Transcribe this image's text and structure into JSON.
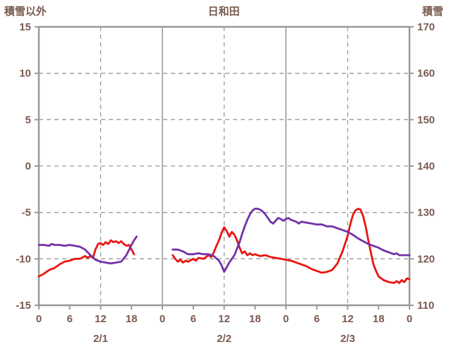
{
  "header": {
    "left_axis_title": "積雪以外",
    "title": "日和田",
    "right_axis_title": "積雪"
  },
  "colors": {
    "background": "#ffffff",
    "border": "#999999",
    "grid": "#9b9b9b",
    "text": "#7a5a50",
    "red_line": "#ea1510",
    "purple_line": "#7133a6"
  },
  "chart_data": {
    "type": "line",
    "title": "日和田",
    "x_unit": "hour",
    "x_range": [
      0,
      72
    ],
    "grid": true,
    "legend": "none",
    "left_axis": {
      "title": "積雪以外",
      "range": [
        -15,
        15
      ],
      "ticks": [
        15,
        10,
        5,
        0,
        -5,
        -10,
        -15
      ]
    },
    "right_axis": {
      "title": "積雪",
      "range": [
        110,
        170
      ],
      "ticks": [
        170,
        160,
        150,
        140,
        130,
        120,
        110
      ]
    },
    "x_ticks": [
      {
        "hour": 0,
        "label": "0"
      },
      {
        "hour": 6,
        "label": "6"
      },
      {
        "hour": 12,
        "label": "12"
      },
      {
        "hour": 18,
        "label": "18"
      },
      {
        "hour": 24,
        "label": "0"
      },
      {
        "hour": 30,
        "label": "6"
      },
      {
        "hour": 36,
        "label": "12"
      },
      {
        "hour": 42,
        "label": "18"
      },
      {
        "hour": 48,
        "label": "0"
      },
      {
        "hour": 54,
        "label": "6"
      },
      {
        "hour": 60,
        "label": "12"
      },
      {
        "hour": 66,
        "label": "18"
      },
      {
        "hour": 72,
        "label": "0"
      }
    ],
    "day_labels": [
      {
        "hour": 12,
        "label": "2/1"
      },
      {
        "hour": 36,
        "label": "2/2"
      },
      {
        "hour": 60,
        "label": "2/3"
      }
    ],
    "v_gridlines_dashed_hours": [
      12,
      36,
      60
    ],
    "v_gridlines_solid_hours": [
      24,
      48
    ],
    "h_gridlines_left_values": [
      10,
      5,
      0,
      -5,
      -10
    ],
    "series": [
      {
        "name": "積雪以外",
        "axis": "left",
        "color": "#ea1510",
        "segments": [
          [
            [
              0,
              -11.9
            ],
            [
              1,
              -11.6
            ],
            [
              2,
              -11.2
            ],
            [
              3,
              -11.0
            ],
            [
              4,
              -10.6
            ],
            [
              5,
              -10.3
            ],
            [
              6,
              -10.2
            ],
            [
              7,
              -10.0
            ],
            [
              8,
              -10.0
            ],
            [
              9,
              -9.7
            ],
            [
              9.5,
              -9.9
            ],
            [
              10,
              -9.7
            ],
            [
              10.5,
              -9.9
            ],
            [
              11,
              -9.0
            ],
            [
              11.5,
              -8.4
            ],
            [
              12,
              -8.3
            ],
            [
              12.5,
              -8.5
            ],
            [
              13,
              -8.2
            ],
            [
              13.5,
              -8.4
            ],
            [
              14,
              -8.0
            ],
            [
              14.5,
              -8.2
            ],
            [
              15,
              -8.1
            ],
            [
              15.5,
              -8.3
            ],
            [
              16,
              -8.1
            ],
            [
              16.5,
              -8.4
            ],
            [
              17,
              -8.6
            ],
            [
              17.5,
              -8.5
            ],
            [
              18,
              -9.0
            ],
            [
              18.5,
              -9.5
            ]
          ],
          [
            [
              26,
              -9.6
            ],
            [
              26.5,
              -10.0
            ],
            [
              27,
              -10.3
            ],
            [
              27.5,
              -10.1
            ],
            [
              28,
              -10.4
            ],
            [
              28.5,
              -10.2
            ],
            [
              29,
              -10.3
            ],
            [
              30,
              -10.0
            ],
            [
              30.5,
              -10.2
            ],
            [
              31,
              -9.9
            ],
            [
              32,
              -10.0
            ],
            [
              33,
              -9.6
            ],
            [
              33.5,
              -9.8
            ],
            [
              34,
              -9.3
            ],
            [
              34.5,
              -8.6
            ],
            [
              35,
              -8.0
            ],
            [
              35.5,
              -7.2
            ],
            [
              36,
              -6.6
            ],
            [
              36.5,
              -7.0
            ],
            [
              37,
              -7.6
            ],
            [
              37.5,
              -7.1
            ],
            [
              38,
              -7.4
            ],
            [
              38.5,
              -8.0
            ],
            [
              39,
              -8.8
            ],
            [
              39.5,
              -9.4
            ],
            [
              40,
              -9.2
            ],
            [
              40.5,
              -9.6
            ],
            [
              41,
              -9.4
            ],
            [
              41.5,
              -9.6
            ],
            [
              42,
              -9.5
            ],
            [
              43,
              -9.7
            ],
            [
              44,
              -9.6
            ],
            [
              45,
              -9.8
            ],
            [
              46,
              -9.9
            ],
            [
              47,
              -10.0
            ],
            [
              48,
              -10.1
            ],
            [
              49,
              -10.2
            ],
            [
              50,
              -10.4
            ],
            [
              51,
              -10.6
            ],
            [
              52,
              -10.8
            ],
            [
              53,
              -11.1
            ],
            [
              54,
              -11.3
            ],
            [
              55,
              -11.5
            ],
            [
              56,
              -11.4
            ],
            [
              57,
              -11.2
            ],
            [
              58,
              -10.5
            ],
            [
              59,
              -9.2
            ],
            [
              60,
              -7.5
            ],
            [
              60.5,
              -6.3
            ],
            [
              61,
              -5.3
            ],
            [
              61.5,
              -4.8
            ],
            [
              62,
              -4.6
            ],
            [
              62.5,
              -4.7
            ],
            [
              63,
              -5.4
            ],
            [
              63.5,
              -6.5
            ],
            [
              64,
              -8.0
            ],
            [
              64.5,
              -9.3
            ],
            [
              65,
              -10.6
            ],
            [
              65.5,
              -11.3
            ],
            [
              66,
              -11.9
            ],
            [
              66.5,
              -12.1
            ],
            [
              67,
              -12.3
            ],
            [
              68,
              -12.5
            ],
            [
              69,
              -12.6
            ],
            [
              69.5,
              -12.4
            ],
            [
              70,
              -12.6
            ],
            [
              70.5,
              -12.3
            ],
            [
              71,
              -12.5
            ],
            [
              71.5,
              -12.1
            ],
            [
              72,
              -12.2
            ]
          ]
        ]
      },
      {
        "name": "積雪",
        "axis": "right",
        "color": "#7133a6",
        "segments": [
          [
            [
              0,
              123
            ],
            [
              1,
              123
            ],
            [
              2,
              122.8
            ],
            [
              2.5,
              123.2
            ],
            [
              3,
              123
            ],
            [
              4,
              123
            ],
            [
              5,
              122.8
            ],
            [
              6,
              123
            ],
            [
              7,
              122.8
            ],
            [
              8,
              122.6
            ],
            [
              9,
              122
            ],
            [
              10,
              120.8
            ],
            [
              11,
              119.8
            ],
            [
              12,
              119.4
            ],
            [
              13,
              119.2
            ],
            [
              14,
              119.0
            ],
            [
              15,
              119.2
            ],
            [
              16,
              119.4
            ],
            [
              17,
              120.8
            ],
            [
              18,
              123
            ],
            [
              18.5,
              124
            ],
            [
              19,
              124.8
            ]
          ],
          [
            [
              26,
              122
            ],
            [
              27,
              122
            ],
            [
              28,
              121.6
            ],
            [
              29,
              121
            ],
            [
              30,
              121
            ],
            [
              31,
              121.2
            ],
            [
              32,
              121
            ],
            [
              33,
              121
            ],
            [
              34,
              120.6
            ],
            [
              35,
              119.6
            ],
            [
              35.5,
              118.6
            ],
            [
              36,
              117.2
            ],
            [
              36.5,
              118.2
            ],
            [
              37,
              119.2
            ],
            [
              37.5,
              120
            ],
            [
              38,
              120.8
            ],
            [
              38.5,
              122.2
            ],
            [
              39,
              123.6
            ],
            [
              39.5,
              125.4
            ],
            [
              40,
              127
            ],
            [
              40.5,
              128.4
            ],
            [
              41,
              129.6
            ],
            [
              41.5,
              130.4
            ],
            [
              42,
              130.8
            ],
            [
              42.5,
              130.8
            ],
            [
              43,
              130.6
            ],
            [
              43.5,
              130.2
            ],
            [
              44,
              129.6
            ],
            [
              44.5,
              128.8
            ],
            [
              45,
              128
            ],
            [
              45.5,
              127.6
            ],
            [
              46,
              128.2
            ],
            [
              46.5,
              128.8
            ],
            [
              47,
              128.6
            ],
            [
              47.5,
              128.2
            ],
            [
              48,
              128.6
            ],
            [
              48.5,
              128.8
            ],
            [
              49,
              128.4
            ],
            [
              50,
              128
            ],
            [
              50.5,
              127.6
            ],
            [
              51,
              128
            ],
            [
              52,
              127.8
            ],
            [
              53,
              127.6
            ],
            [
              54,
              127.4
            ],
            [
              55,
              127.4
            ],
            [
              56,
              127
            ],
            [
              57,
              127
            ],
            [
              58,
              126.6
            ],
            [
              59,
              126.2
            ],
            [
              60,
              125.8
            ],
            [
              61,
              125.2
            ],
            [
              62,
              124.4
            ],
            [
              63,
              123.8
            ],
            [
              64,
              123.2
            ],
            [
              65,
              122.8
            ],
            [
              66,
              122.4
            ],
            [
              67,
              121.8
            ],
            [
              68,
              121.4
            ],
            [
              69,
              121
            ],
            [
              69.5,
              121.2
            ],
            [
              70,
              120.8
            ],
            [
              71,
              120.8
            ],
            [
              72,
              120.8
            ]
          ]
        ]
      }
    ]
  }
}
